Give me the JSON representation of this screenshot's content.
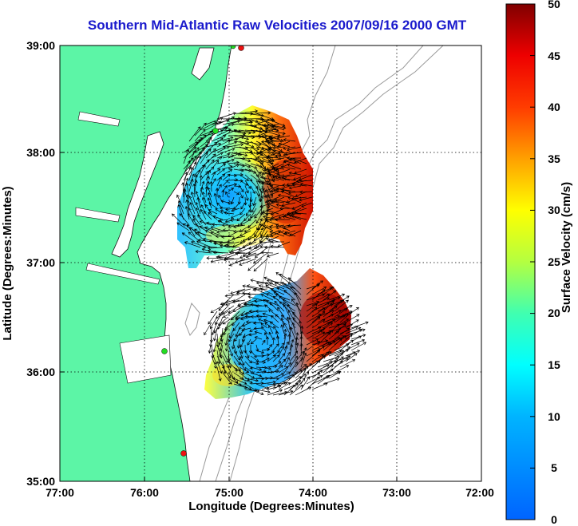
{
  "title": "Southern Mid-Atlantic Raw Velocities 2007/09/16 2000 GMT",
  "xlabel": "Longitude (Degrees:Minutes)",
  "ylabel": "Latitude (Degrees:Minutes)",
  "x_ticks": [
    "77:00",
    "76:00",
    "75:00",
    "74:00",
    "73:00",
    "72:00"
  ],
  "y_ticks": [
    "39:00",
    "38:00",
    "37:00",
    "36:00",
    "35:00"
  ],
  "colorbar": {
    "label": "Surface Velocity (cm/s)",
    "ticks": [
      "50",
      "45",
      "40",
      "35",
      "30",
      "25",
      "20",
      "15",
      "10",
      "5",
      "0"
    ],
    "range": [
      0,
      50
    ]
  },
  "colors": {
    "land": "#5cf5a6",
    "title": "#1a1acc",
    "station_green": "#22dd22",
    "station_red": "#ee1111",
    "bathymetry": "#999999"
  }
}
